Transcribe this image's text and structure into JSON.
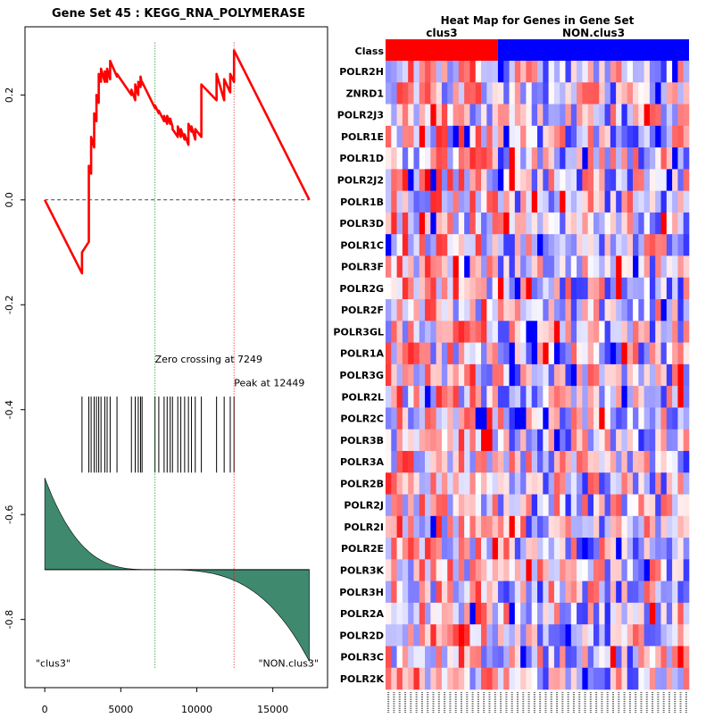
{
  "colors": {
    "es_line": "#ff0000",
    "zero_line": "#008000",
    "peak_line": "#ff0000",
    "ranked_fill": "#3f8a6f",
    "class_a": "#ff0000",
    "class_b": "#0000ff"
  },
  "chart_data": [
    {
      "type": "line",
      "title": "Gene Set  45 : KEGG_RNA_POLYMERASE",
      "xlabel": "",
      "ylabel": "",
      "xlim": [
        -1300,
        18600
      ],
      "ylim": [
        -0.93,
        0.33
      ],
      "x_ticks": [
        0,
        5000,
        10000,
        15000
      ],
      "y_ticks": [
        0.2,
        0.0,
        -0.2,
        -0.4,
        -0.6,
        -0.8
      ],
      "y_tick_labels": [
        "0.2",
        "0.0",
        "-0.2",
        "-0.4",
        "-0.6",
        "-0.8"
      ],
      "total_genes": 17400,
      "hits": [
        2450,
        2900,
        3050,
        3250,
        3400,
        3550,
        3700,
        3950,
        4100,
        4300,
        4750,
        5700,
        5950,
        6150,
        6300,
        6400,
        7250,
        7500,
        7850,
        8050,
        8250,
        8400,
        8750,
        8950,
        9200,
        9450,
        9650,
        9900,
        10300,
        11300,
        11800,
        12200,
        12449
      ],
      "es_curve": {
        "x": [
          0,
          2450,
          2451,
          2900,
          2901,
          3050,
          3051,
          3250,
          3251,
          3400,
          3401,
          3550,
          3551,
          3700,
          3701,
          3950,
          3951,
          4100,
          4101,
          4300,
          4301,
          4750,
          4751,
          5700,
          5701,
          5950,
          5951,
          6150,
          6151,
          6300,
          6301,
          6400,
          6401,
          7250,
          7251,
          7500,
          7501,
          7850,
          7851,
          8050,
          8051,
          8250,
          8251,
          8400,
          8401,
          8750,
          8751,
          8950,
          8951,
          9200,
          9201,
          9450,
          9451,
          9650,
          9651,
          9900,
          9901,
          10300,
          10301,
          11300,
          11301,
          11800,
          11801,
          12200,
          12201,
          12449,
          12450,
          17400
        ],
        "y": [
          0.0,
          -0.14,
          -0.1,
          -0.08,
          0.065,
          0.05,
          0.12,
          0.1,
          0.165,
          0.15,
          0.2,
          0.185,
          0.24,
          0.225,
          0.25,
          0.225,
          0.245,
          0.225,
          0.25,
          0.23,
          0.265,
          0.235,
          0.24,
          0.2,
          0.21,
          0.19,
          0.22,
          0.2,
          0.225,
          0.215,
          0.235,
          0.22,
          0.225,
          0.175,
          0.18,
          0.165,
          0.17,
          0.15,
          0.16,
          0.145,
          0.16,
          0.145,
          0.155,
          0.14,
          0.135,
          0.12,
          0.14,
          0.12,
          0.135,
          0.115,
          0.125,
          0.105,
          0.145,
          0.13,
          0.14,
          0.115,
          0.135,
          0.12,
          0.22,
          0.19,
          0.24,
          0.19,
          0.23,
          0.205,
          0.24,
          0.225,
          0.285,
          0.0
        ]
      },
      "zero_crossing": 7249,
      "peak": 12449,
      "annotations": {
        "zero_crossing": "Zero crossing at 7249",
        "peak": "Peak at 12449",
        "left_class": "\"clus3\"",
        "right_class": "\"NON.clus3\""
      },
      "ranked_metric": {
        "baseline": -0.705,
        "left_max": -0.53,
        "right_min": -0.88
      }
    },
    {
      "type": "heatmap",
      "title": "Heat Map for Genes in Gene Set",
      "class_row_label": "Class",
      "class_labels": [
        "clus3",
        "NON.clus3"
      ],
      "n_samples": 54,
      "n_class_a": 20,
      "rows": [
        "POLR2H",
        "ZNRD1",
        "POLR2J3",
        "POLR1E",
        "POLR1D",
        "POLR2J2",
        "POLR1B",
        "POLR3D",
        "POLR1C",
        "POLR3F",
        "POLR2G",
        "POLR2F",
        "POLR3GL",
        "POLR1A",
        "POLR3G",
        "POLR2L",
        "POLR2C",
        "POLR3B",
        "POLR3A",
        "POLR2B",
        "POLR2J",
        "POLR2I",
        "POLR2E",
        "POLR3K",
        "POLR3H",
        "POLR2A",
        "POLR2D",
        "POLR3C",
        "POLR2K"
      ]
    }
  ]
}
